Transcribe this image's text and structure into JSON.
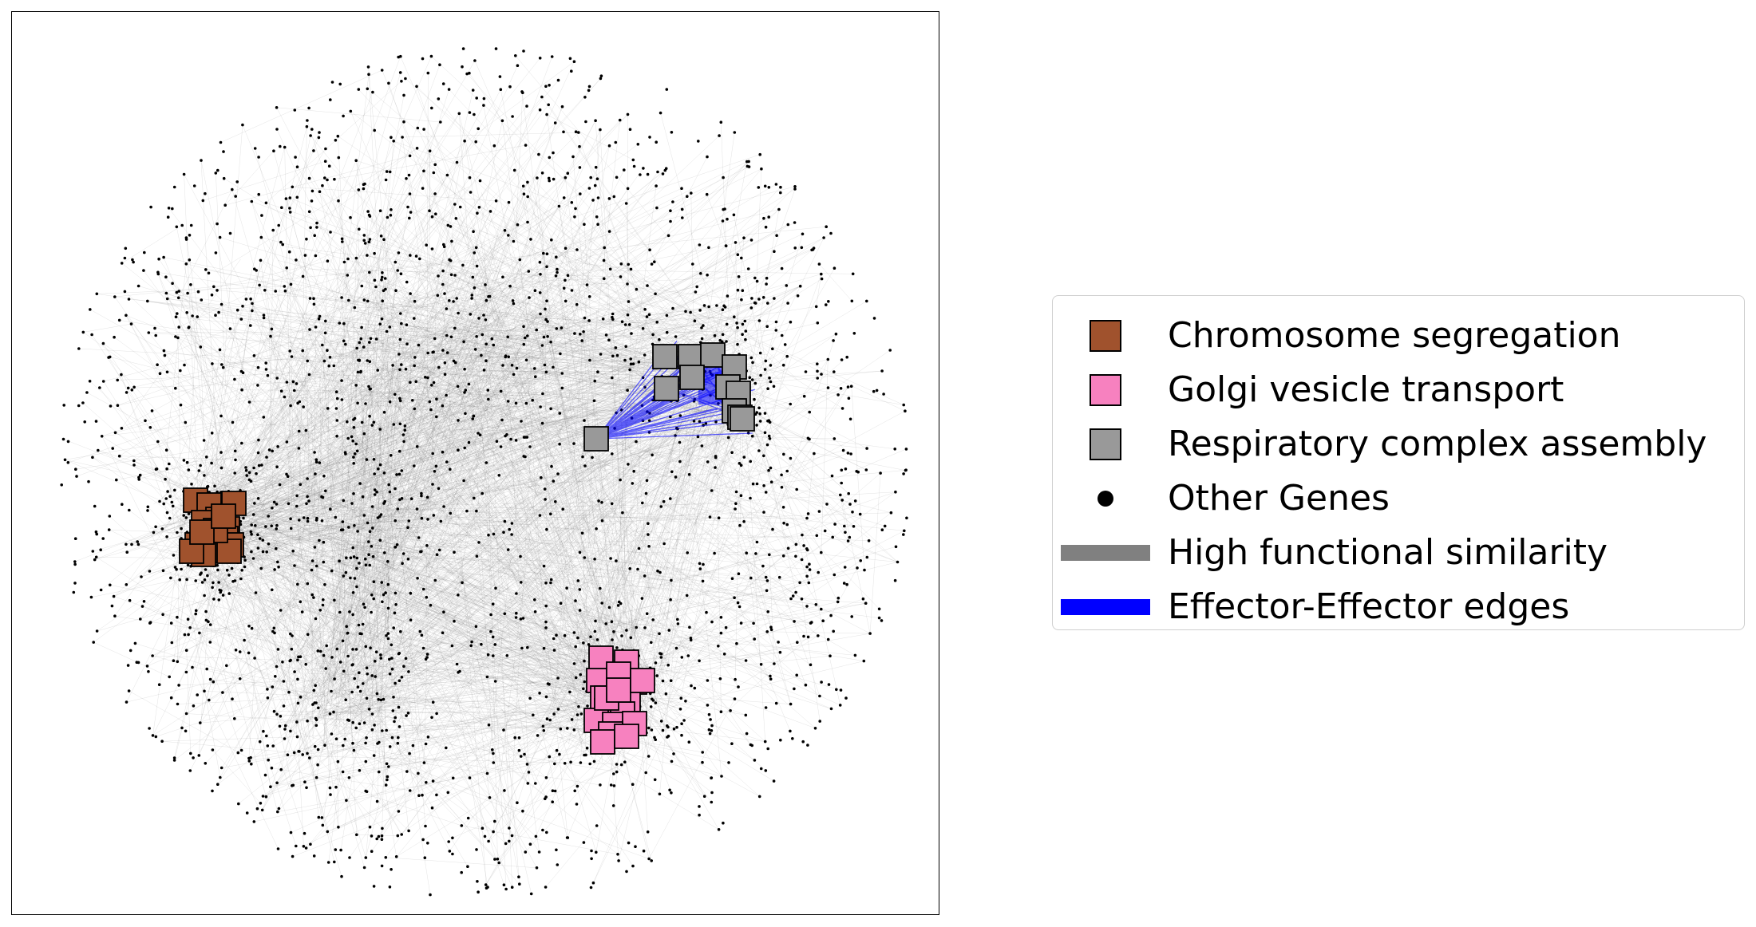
{
  "chart_data": {
    "type": "network",
    "node_groups": [
      {
        "name": "Chromosome segregation",
        "color": "#a0522d",
        "marker": "square"
      },
      {
        "name": "Golgi vesicle transport",
        "color": "#f781bf",
        "marker": "square"
      },
      {
        "name": "Respiratory complex assembly",
        "color": "#999999",
        "marker": "square"
      },
      {
        "name": "Other Genes",
        "color": "#000000",
        "marker": "dot"
      }
    ],
    "edge_types": [
      {
        "name": "High functional similarity",
        "color": "#808080"
      },
      {
        "name": "Effector-Effector edges",
        "color": "#0000ff"
      }
    ],
    "axes_ticks": "off"
  },
  "legend": {
    "items": [
      {
        "label": "Chromosome segregation",
        "kind": "square",
        "color": "#a0522d"
      },
      {
        "label": "Golgi vesicle transport",
        "kind": "square",
        "color": "#f781bf"
      },
      {
        "label": "Respiratory complex assembly",
        "kind": "square",
        "color": "#999999"
      },
      {
        "label": "Other Genes",
        "kind": "dot",
        "color": "#000000"
      },
      {
        "label": "High functional similarity",
        "kind": "line",
        "color": "#808080"
      },
      {
        "label": "Effector-Effector edges",
        "kind": "line",
        "color": "#0000ff"
      }
    ]
  }
}
